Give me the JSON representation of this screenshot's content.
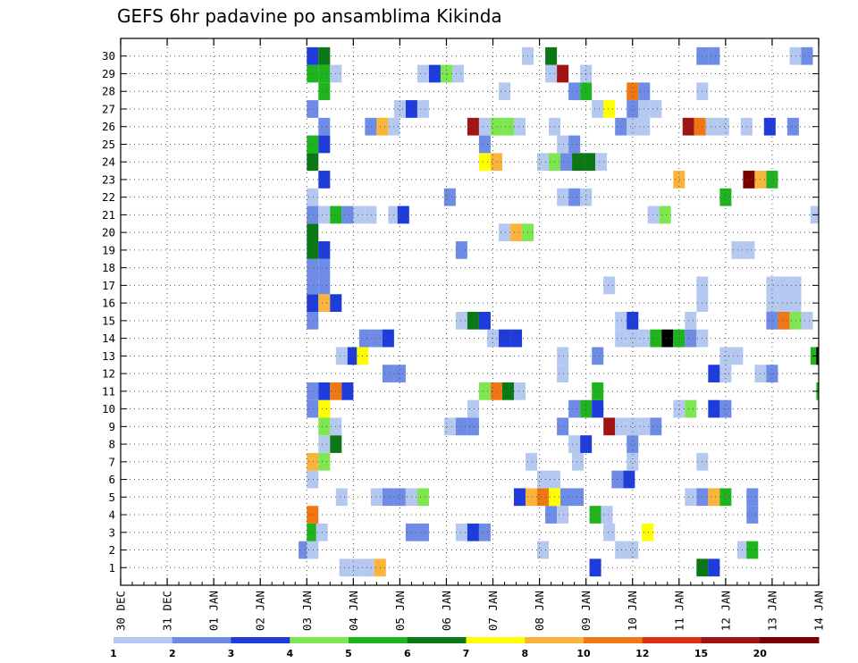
{
  "chart_data": {
    "type": "heatmap",
    "title": "GEFS 6hr padavine po ansamblima Kikinda",
    "xlabel": "",
    "ylabel": "",
    "x_tick_labels": [
      "30 DEC",
      "31 DEC",
      "01 JAN",
      "02 JAN",
      "03 JAN",
      "04 JAN",
      "05 JAN",
      "06 JAN",
      "07 JAN",
      "08 JAN",
      "09 JAN",
      "10 JAN",
      "11 JAN",
      "12 JAN",
      "13 JAN",
      "14 JAN"
    ],
    "x_unit": "6-hour step (4 steps per day), day 0 = 30 DEC",
    "xlim": [
      0,
      60
    ],
    "y_tick_labels": [
      "1",
      "2",
      "3",
      "4",
      "5",
      "6",
      "7",
      "8",
      "9",
      "10",
      "11",
      "12",
      "13",
      "14",
      "15",
      "16",
      "17",
      "18",
      "19",
      "20",
      "21",
      "22",
      "23",
      "24",
      "25",
      "26",
      "27",
      "28",
      "29",
      "30"
    ],
    "ylim": [
      0,
      31
    ],
    "grid": "dotted",
    "colorbar": {
      "labels": [
        "1",
        "2",
        "3",
        "4",
        "5",
        "6",
        "7",
        "8",
        "10",
        "12",
        "15",
        "20"
      ],
      "colors": [
        "#b4c8f0",
        "#6e8ce6",
        "#1e3cdc",
        "#7ee650",
        "#1eb41e",
        "#0a7814",
        "#ffff00",
        "#fab43c",
        "#f07814",
        "#dc3214",
        "#a01414",
        "#780000"
      ]
    },
    "cells": [
      {
        "member": 1,
        "steps": [
          [
            18.8,
            1
          ],
          [
            19.8,
            1
          ],
          [
            20.8,
            1
          ],
          [
            21.8,
            8
          ],
          [
            40.3,
            3
          ],
          [
            49.5,
            6
          ],
          [
            50.5,
            3
          ]
        ]
      },
      {
        "member": 2,
        "steps": [
          [
            15.3,
            2
          ],
          [
            16,
            1
          ],
          [
            35.8,
            1
          ],
          [
            42.5,
            1
          ],
          [
            43.5,
            1
          ],
          [
            53,
            1
          ],
          [
            53.8,
            5
          ]
        ]
      },
      {
        "member": 3,
        "steps": [
          [
            16,
            5
          ],
          [
            16.8,
            1
          ],
          [
            24.5,
            2
          ],
          [
            25.5,
            2
          ],
          [
            28.8,
            1
          ],
          [
            29.8,
            3
          ],
          [
            30.8,
            2
          ],
          [
            41.5,
            1
          ],
          [
            44.8,
            7
          ]
        ]
      },
      {
        "member": 4,
        "steps": [
          [
            16,
            9
          ],
          [
            36.5,
            2
          ],
          [
            37.5,
            1
          ],
          [
            40.3,
            5
          ],
          [
            41.3,
            1
          ],
          [
            53.8,
            2
          ]
        ]
      },
      {
        "member": 5,
        "steps": [
          [
            18.5,
            1
          ],
          [
            21.5,
            1
          ],
          [
            22.5,
            2
          ],
          [
            23.5,
            2
          ],
          [
            24.5,
            1
          ],
          [
            25.5,
            4
          ],
          [
            33.8,
            3
          ],
          [
            34.8,
            8
          ],
          [
            35.8,
            9
          ],
          [
            36.8,
            7
          ],
          [
            37.8,
            2
          ],
          [
            38.8,
            2
          ],
          [
            48.5,
            1
          ],
          [
            49.5,
            2
          ],
          [
            50.5,
            8
          ],
          [
            51.5,
            5
          ],
          [
            53.8,
            2
          ]
        ]
      },
      {
        "member": 6,
        "steps": [
          [
            16,
            1
          ],
          [
            35.8,
            1
          ],
          [
            36.8,
            1
          ],
          [
            42.2,
            2
          ],
          [
            43.2,
            3
          ]
        ]
      },
      {
        "member": 7,
        "steps": [
          [
            16,
            8
          ],
          [
            17,
            4
          ],
          [
            34.8,
            1
          ],
          [
            38.8,
            1
          ],
          [
            43.5,
            1
          ],
          [
            49.5,
            1
          ]
        ]
      },
      {
        "member": 8,
        "steps": [
          [
            17,
            1
          ],
          [
            18,
            6
          ],
          [
            38.5,
            1
          ],
          [
            39.5,
            3
          ],
          [
            43.5,
            2
          ]
        ]
      },
      {
        "member": 9,
        "steps": [
          [
            17,
            4
          ],
          [
            18,
            1
          ],
          [
            27.8,
            1
          ],
          [
            28.8,
            2
          ],
          [
            29.8,
            2
          ],
          [
            37.5,
            2
          ],
          [
            41.5,
            11
          ],
          [
            42.5,
            1
          ],
          [
            43.5,
            1
          ],
          [
            44.5,
            1
          ],
          [
            45.5,
            2
          ]
        ]
      },
      {
        "member": 10,
        "steps": [
          [
            16,
            2
          ],
          [
            17,
            7
          ],
          [
            29.8,
            1
          ],
          [
            38.5,
            2
          ],
          [
            39.5,
            5
          ],
          [
            40.5,
            3
          ],
          [
            47.5,
            1
          ],
          [
            48.5,
            4
          ],
          [
            50.5,
            3
          ],
          [
            51.5,
            2
          ]
        ]
      },
      {
        "member": 11,
        "steps": [
          [
            16,
            2
          ],
          [
            17,
            3
          ],
          [
            18,
            9
          ],
          [
            19,
            3
          ],
          [
            30.8,
            4
          ],
          [
            31.8,
            9
          ],
          [
            32.8,
            6
          ],
          [
            33.8,
            1
          ],
          [
            40.5,
            5
          ],
          [
            59.8,
            5
          ]
        ]
      },
      {
        "member": 12,
        "steps": [
          [
            22.5,
            2
          ],
          [
            23.5,
            2
          ],
          [
            37.5,
            1
          ],
          [
            50.5,
            3
          ],
          [
            51.5,
            1
          ],
          [
            54.5,
            1
          ],
          [
            55.5,
            2
          ]
        ]
      },
      {
        "member": 13,
        "steps": [
          [
            18.5,
            1
          ],
          [
            19.5,
            3
          ],
          [
            20.3,
            7
          ],
          [
            37.5,
            1
          ],
          [
            40.5,
            2
          ],
          [
            51.5,
            1
          ],
          [
            52.5,
            1
          ],
          [
            59.3,
            5
          ],
          [
            59.8,
            13
          ]
        ]
      },
      {
        "member": 14,
        "steps": [
          [
            20.5,
            2
          ],
          [
            21.5,
            2
          ],
          [
            22.5,
            3
          ],
          [
            31.5,
            1
          ],
          [
            32.5,
            3
          ],
          [
            33.5,
            3
          ],
          [
            42.5,
            1
          ],
          [
            43.5,
            1
          ],
          [
            44.5,
            1
          ],
          [
            45.5,
            5
          ],
          [
            46.5,
            13
          ],
          [
            47.5,
            5
          ],
          [
            48.5,
            2
          ],
          [
            49.5,
            1
          ]
        ]
      },
      {
        "member": 15,
        "steps": [
          [
            16,
            2
          ],
          [
            28.8,
            1
          ],
          [
            29.8,
            6
          ],
          [
            30.8,
            3
          ],
          [
            42.5,
            1
          ],
          [
            43.5,
            3
          ],
          [
            48.5,
            1
          ],
          [
            55.5,
            2
          ],
          [
            56.5,
            9
          ],
          [
            57.5,
            4
          ],
          [
            58.5,
            1
          ]
        ]
      },
      {
        "member": 16,
        "steps": [
          [
            16,
            3
          ],
          [
            17,
            8
          ],
          [
            18,
            3
          ],
          [
            49.5,
            1
          ],
          [
            55.5,
            1
          ],
          [
            56.5,
            1
          ],
          [
            57.5,
            1
          ]
        ]
      },
      {
        "member": 17,
        "steps": [
          [
            16,
            2
          ],
          [
            17,
            2
          ],
          [
            41.5,
            1
          ],
          [
            49.5,
            1
          ],
          [
            55.5,
            1
          ],
          [
            56.5,
            1
          ],
          [
            57.5,
            1
          ]
        ]
      },
      {
        "member": 18,
        "steps": [
          [
            16,
            2
          ],
          [
            17,
            2
          ]
        ]
      },
      {
        "member": 19,
        "steps": [
          [
            16,
            6
          ],
          [
            17,
            3
          ],
          [
            28.8,
            2
          ],
          [
            52.5,
            1
          ],
          [
            53.5,
            1
          ]
        ]
      },
      {
        "member": 20,
        "steps": [
          [
            16,
            6
          ],
          [
            32.5,
            1
          ],
          [
            33.5,
            8
          ],
          [
            34.5,
            4
          ]
        ]
      },
      {
        "member": 21,
        "steps": [
          [
            16,
            2
          ],
          [
            17,
            1
          ],
          [
            18,
            5
          ],
          [
            19,
            2
          ],
          [
            20,
            1
          ],
          [
            21,
            1
          ],
          [
            23,
            1
          ],
          [
            23.8,
            3
          ],
          [
            45.3,
            1
          ],
          [
            46.3,
            4
          ],
          [
            59.3,
            1
          ]
        ]
      },
      {
        "member": 22,
        "steps": [
          [
            16,
            1
          ],
          [
            27.8,
            2
          ],
          [
            37.5,
            1
          ],
          [
            38.5,
            2
          ],
          [
            39.5,
            1
          ],
          [
            51.5,
            5
          ]
        ]
      },
      {
        "member": 23,
        "steps": [
          [
            17,
            3
          ],
          [
            47.5,
            8
          ],
          [
            53.5,
            12
          ],
          [
            54.5,
            8
          ],
          [
            55.5,
            5
          ]
        ]
      },
      {
        "member": 24,
        "steps": [
          [
            16,
            6
          ],
          [
            30.8,
            7
          ],
          [
            31.8,
            8
          ],
          [
            35.8,
            1
          ],
          [
            36.8,
            4
          ],
          [
            37.8,
            2
          ],
          [
            38.8,
            6
          ],
          [
            39.8,
            6
          ],
          [
            40.8,
            1
          ]
        ]
      },
      {
        "member": 25,
        "steps": [
          [
            16,
            5
          ],
          [
            17,
            3
          ],
          [
            30.8,
            2
          ],
          [
            37.5,
            1
          ],
          [
            38.5,
            2
          ]
        ]
      },
      {
        "member": 26,
        "steps": [
          [
            17,
            2
          ],
          [
            21,
            2
          ],
          [
            22,
            8
          ],
          [
            23,
            1
          ],
          [
            29.8,
            11
          ],
          [
            30.8,
            1
          ],
          [
            31.8,
            4
          ],
          [
            32.8,
            4
          ],
          [
            33.8,
            1
          ],
          [
            36.8,
            1
          ],
          [
            42.5,
            2
          ],
          [
            43.5,
            1
          ],
          [
            44.5,
            1
          ],
          [
            48.3,
            11
          ],
          [
            49.3,
            9
          ],
          [
            50.3,
            1
          ],
          [
            51.3,
            1
          ],
          [
            53.3,
            1
          ],
          [
            55.3,
            3
          ],
          [
            57.3,
            2
          ]
        ]
      },
      {
        "member": 27,
        "steps": [
          [
            16,
            2
          ],
          [
            23.5,
            1
          ],
          [
            24.5,
            3
          ],
          [
            25.5,
            1
          ],
          [
            40.5,
            1
          ],
          [
            41.5,
            7
          ],
          [
            43.5,
            2
          ],
          [
            44.5,
            1
          ],
          [
            45.5,
            1
          ]
        ]
      },
      {
        "member": 28,
        "steps": [
          [
            17,
            5
          ],
          [
            32.5,
            1
          ],
          [
            38.5,
            2
          ],
          [
            39.5,
            5
          ],
          [
            43.5,
            9
          ],
          [
            44.5,
            2
          ],
          [
            49.5,
            1
          ]
        ]
      },
      {
        "member": 29,
        "steps": [
          [
            16,
            5
          ],
          [
            17,
            5
          ],
          [
            18,
            1
          ],
          [
            25.5,
            1
          ],
          [
            26.5,
            3
          ],
          [
            27.5,
            4
          ],
          [
            28.5,
            1
          ],
          [
            36.5,
            1
          ],
          [
            37.5,
            11
          ],
          [
            39.5,
            1
          ]
        ]
      },
      {
        "member": 30,
        "steps": [
          [
            16,
            3
          ],
          [
            17,
            6
          ],
          [
            34.5,
            1
          ],
          [
            36.5,
            6
          ],
          [
            49.5,
            2
          ],
          [
            50.5,
            2
          ],
          [
            57.5,
            1
          ],
          [
            58.5,
            2
          ]
        ]
      }
    ]
  }
}
